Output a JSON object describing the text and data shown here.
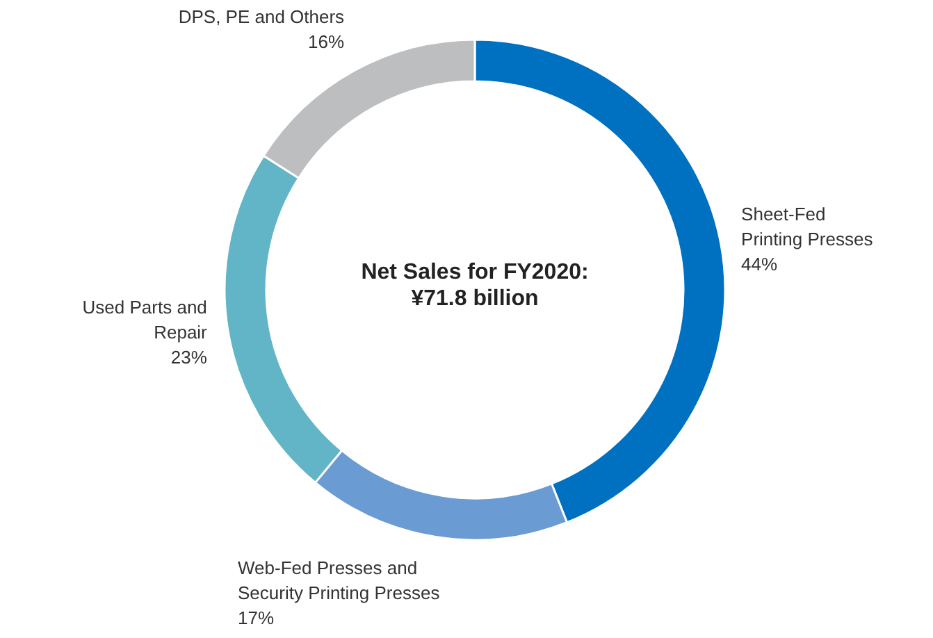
{
  "chart_data": {
    "type": "donut",
    "title": "Net Sales for FY2020:",
    "subtitle": "¥71.8 billion",
    "categories": [
      "Sheet-Fed\nPrinting Presses",
      "Web-Fed Presses and\nSecurity Printing Presses",
      "Used Parts and\nRepair",
      "DPS, PE and Others"
    ],
    "values": [
      44,
      17,
      23,
      16
    ],
    "value_labels": [
      "44%",
      "17%",
      "23%",
      "16%"
    ],
    "colors": [
      "#0070c0",
      "#6a9bd3",
      "#62b5c6",
      "#bdbec0"
    ]
  }
}
